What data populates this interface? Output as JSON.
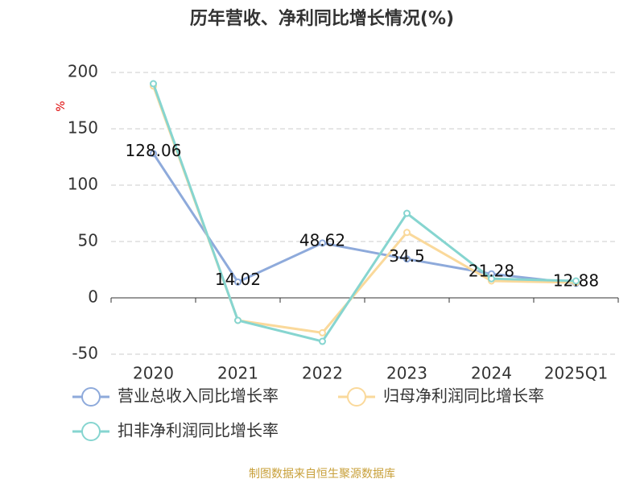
{
  "chart_data": {
    "type": "line",
    "title": "历年营收、净利同比增长情况(%)",
    "y_label": "%",
    "categories": [
      "2020",
      "2021",
      "2022",
      "2023",
      "2024",
      "2025Q1"
    ],
    "series": [
      {
        "name": "营业总收入同比增长率",
        "color": "#8eaadb",
        "labels": true,
        "values": [
          128.06,
          14.02,
          48.62,
          34.5,
          21.28,
          12.88
        ]
      },
      {
        "name": "归母净利润同比增长率",
        "color": "#fad99b",
        "labels": false,
        "values": [
          188,
          -20,
          -31,
          58,
          15,
          13.6
        ]
      },
      {
        "name": "扣非净利润同比增长率",
        "color": "#86d5d0",
        "labels": false,
        "values": [
          190,
          -20,
          -38.6,
          75,
          17,
          15
        ]
      }
    ],
    "ylim": [
      -50,
      200
    ],
    "yticks": [
      -50,
      0,
      50,
      100,
      150,
      200
    ],
    "grid": true,
    "source": "制图数据来自恒生聚源数据库"
  }
}
